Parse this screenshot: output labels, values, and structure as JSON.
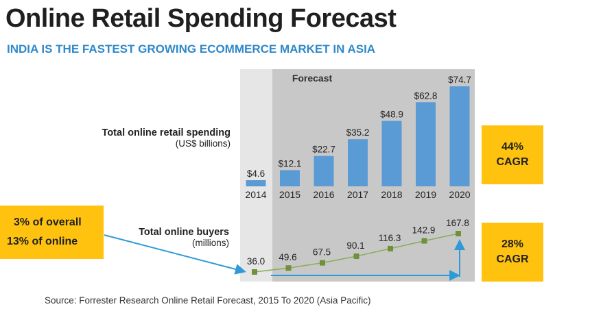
{
  "title": "Online Retail Spending Forecast",
  "subtitle": "INDIA IS THE FASTEST GROWING ECOMMERCE MARKET IN ASIA",
  "source": "Source: Forrester Research Online Retail Forecast, 2015 To 2020 (Asia Pacific)",
  "callouts": {
    "share_line1": "3% of overall",
    "share_line2": "13% of online",
    "spending_cagr_value": "44%",
    "spending_cagr_label": "CAGR",
    "buyers_cagr_value": "28%",
    "buyers_cagr_label": "CAGR"
  },
  "colors": {
    "bar": "#5b9bd5",
    "forecast_bg": "#c8c8c8",
    "history_bg": "#e6e6e6",
    "line": "#8cad5b",
    "marker": "#70913a",
    "arrow": "#2e9bd6",
    "callout": "#ffc20e",
    "subtitle": "#2e88c9"
  },
  "chart_data": [
    {
      "type": "bar",
      "title": "Total online retail spending",
      "ylabel": "(US$ billions)",
      "region_label": "Forecast",
      "categories": [
        "2014",
        "2015",
        "2016",
        "2017",
        "2018",
        "2019",
        "2020"
      ],
      "values": [
        4.6,
        12.1,
        22.7,
        35.2,
        48.9,
        62.8,
        74.7
      ],
      "value_labels": [
        "$4.6",
        "$12.1",
        "$22.7",
        "$35.2",
        "$48.9",
        "$62.8",
        "$74.7"
      ],
      "ylim": [
        0,
        80
      ],
      "grid": false
    },
    {
      "type": "line",
      "title": "Total online buyers",
      "ylabel": "(millions)",
      "categories": [
        "2014",
        "2015",
        "2016",
        "2017",
        "2018",
        "2019",
        "2020"
      ],
      "values": [
        36.0,
        49.6,
        67.5,
        90.1,
        116.3,
        142.9,
        167.8
      ],
      "value_labels": [
        "36.0",
        "49.6",
        "67.5",
        "90.1",
        "116.3",
        "142.9",
        "167.8"
      ],
      "ylim": [
        0,
        180
      ],
      "grid": false
    }
  ]
}
